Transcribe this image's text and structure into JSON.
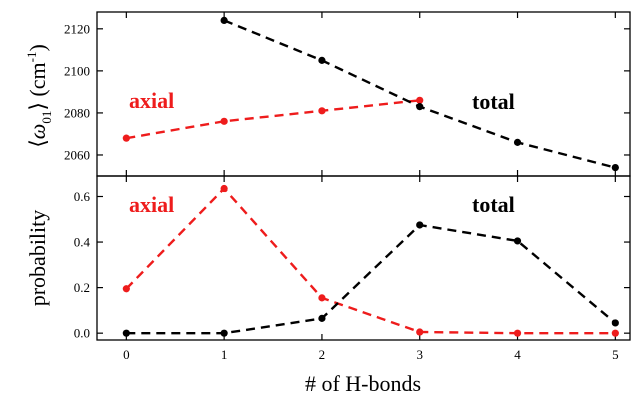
{
  "chart_data": [
    {
      "type": "line",
      "xlabel": "",
      "ylabel_parts": {
        "pre": "⟨",
        "omega": "ω",
        "sub": "01",
        "post": "⟩ (cm",
        "sup": "-1",
        "close": ")"
      },
      "x_ticks": [
        "",
        "",
        "",
        "",
        "",
        ""
      ],
      "y_ticks": [
        "2060",
        "2080",
        "2100",
        "2120"
      ],
      "ylim": [
        2050,
        2128
      ],
      "xlim": [
        -0.3,
        5.15
      ],
      "series": [
        {
          "name": "axial",
          "color": "#ee1c1c",
          "x": [
            0,
            1,
            2,
            3
          ],
          "values": [
            2068,
            2076,
            2081,
            2086
          ]
        },
        {
          "name": "total",
          "color": "#000000",
          "x": [
            1,
            2,
            3,
            4,
            5
          ],
          "values": [
            2124,
            2105,
            2083,
            2066,
            2054
          ]
        }
      ]
    },
    {
      "type": "line",
      "xlabel": "# of H-bonds",
      "ylabel": "probability",
      "x_ticks": [
        "0",
        "1",
        "2",
        "3",
        "4",
        "5"
      ],
      "y_ticks": [
        "0.0",
        "0.2",
        "0.4",
        "0.6"
      ],
      "ylim": [
        -0.03,
        0.69
      ],
      "xlim": [
        -0.3,
        5.15
      ],
      "series": [
        {
          "name": "axial",
          "color": "#ee1c1c",
          "x": [
            0,
            1,
            2,
            3,
            4,
            5
          ],
          "values": [
            0.195,
            0.635,
            0.155,
            0.005,
            0.0,
            0.0
          ]
        },
        {
          "name": "total",
          "color": "#000000",
          "x": [
            0,
            1,
            2,
            3,
            4,
            5
          ],
          "values": [
            0.0,
            0.0,
            0.065,
            0.475,
            0.405,
            0.045
          ]
        }
      ]
    }
  ]
}
